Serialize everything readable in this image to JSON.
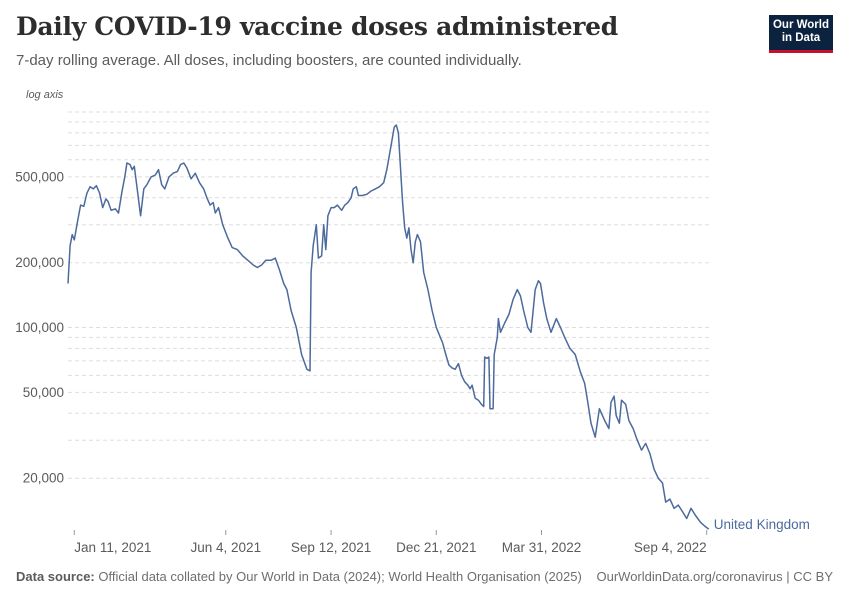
{
  "header": {
    "title": "Daily COVID-19 vaccine doses administered",
    "subtitle": "7-day rolling average. All doses, including boosters, are counted individually.",
    "logo_line1": "Our World",
    "logo_line2": "in Data"
  },
  "footer": {
    "source_label": "Data source:",
    "source_text": " Official data collated by Our World in Data (2024); World Health Organisation (2025)",
    "link_text": "OurWorldinData.org/coronavirus | CC BY"
  },
  "colors": {
    "series": "#4c6a9c",
    "grid": "#dddddd",
    "text": "#5b5b5b"
  },
  "chart_data": {
    "type": "line",
    "title": "Daily COVID-19 vaccine doses administered",
    "subtitle": "7-day rolling average. All doses, including boosters, are counted individually.",
    "y_scale": "log",
    "y_axis_note": "log axis",
    "ylim": [
      11500,
      1000000
    ],
    "xlim": [
      "2021-01-05",
      "2022-09-09"
    ],
    "y_ticks": [
      {
        "value": 20000,
        "label": "20,000"
      },
      {
        "value": 50000,
        "label": "50,000"
      },
      {
        "value": 100000,
        "label": "100,000"
      },
      {
        "value": 200000,
        "label": "200,000"
      },
      {
        "value": 500000,
        "label": "500,000"
      }
    ],
    "x_ticks": [
      {
        "date": "2021-01-11",
        "label": "Jan 11, 2021"
      },
      {
        "date": "2021-06-04",
        "label": "Jun 4, 2021"
      },
      {
        "date": "2021-09-12",
        "label": "Sep 12, 2021"
      },
      {
        "date": "2021-12-21",
        "label": "Dec 21, 2021"
      },
      {
        "date": "2022-03-31",
        "label": "Mar 31, 2022"
      },
      {
        "date": "2022-09-04",
        "label": "Sep 4, 2022"
      }
    ],
    "series": [
      {
        "name": "United Kingdom",
        "points": [
          [
            "2021-01-05",
            160000
          ],
          [
            "2021-01-07",
            240000
          ],
          [
            "2021-01-09",
            270000
          ],
          [
            "2021-01-11",
            255000
          ],
          [
            "2021-01-14",
            310000
          ],
          [
            "2021-01-17",
            370000
          ],
          [
            "2021-01-20",
            365000
          ],
          [
            "2021-01-23",
            420000
          ],
          [
            "2021-01-26",
            450000
          ],
          [
            "2021-01-29",
            440000
          ],
          [
            "2021-02-01",
            455000
          ],
          [
            "2021-02-04",
            420000
          ],
          [
            "2021-02-07",
            360000
          ],
          [
            "2021-02-10",
            395000
          ],
          [
            "2021-02-12",
            385000
          ],
          [
            "2021-02-15",
            350000
          ],
          [
            "2021-02-19",
            355000
          ],
          [
            "2021-02-22",
            340000
          ],
          [
            "2021-02-25",
            420000
          ],
          [
            "2021-02-28",
            500000
          ],
          [
            "2021-03-02",
            580000
          ],
          [
            "2021-03-05",
            570000
          ],
          [
            "2021-03-07",
            540000
          ],
          [
            "2021-03-09",
            560000
          ],
          [
            "2021-03-11",
            470000
          ],
          [
            "2021-03-15",
            330000
          ],
          [
            "2021-03-18",
            440000
          ],
          [
            "2021-03-21",
            460000
          ],
          [
            "2021-03-25",
            500000
          ],
          [
            "2021-03-29",
            510000
          ],
          [
            "2021-04-01",
            540000
          ],
          [
            "2021-04-04",
            460000
          ],
          [
            "2021-04-07",
            440000
          ],
          [
            "2021-04-11",
            500000
          ],
          [
            "2021-04-15",
            520000
          ],
          [
            "2021-04-19",
            530000
          ],
          [
            "2021-04-22",
            570000
          ],
          [
            "2021-04-25",
            580000
          ],
          [
            "2021-04-28",
            550000
          ],
          [
            "2021-05-02",
            490000
          ],
          [
            "2021-05-06",
            520000
          ],
          [
            "2021-05-10",
            470000
          ],
          [
            "2021-05-14",
            440000
          ],
          [
            "2021-05-17",
            400000
          ],
          [
            "2021-05-20",
            370000
          ],
          [
            "2021-05-23",
            380000
          ],
          [
            "2021-05-25",
            340000
          ],
          [
            "2021-05-28",
            360000
          ],
          [
            "2021-06-01",
            300000
          ],
          [
            "2021-06-06",
            260000
          ],
          [
            "2021-06-10",
            235000
          ],
          [
            "2021-06-15",
            230000
          ],
          [
            "2021-06-20",
            215000
          ],
          [
            "2021-06-25",
            205000
          ],
          [
            "2021-06-30",
            195000
          ],
          [
            "2021-07-04",
            190000
          ],
          [
            "2021-07-08",
            195000
          ],
          [
            "2021-07-12",
            205000
          ],
          [
            "2021-07-17",
            205000
          ],
          [
            "2021-07-21",
            210000
          ],
          [
            "2021-07-25",
            185000
          ],
          [
            "2021-07-29",
            160000
          ],
          [
            "2021-08-01",
            150000
          ],
          [
            "2021-08-05",
            120000
          ],
          [
            "2021-08-10",
            100000
          ],
          [
            "2021-08-15",
            75000
          ],
          [
            "2021-08-20",
            64000
          ],
          [
            "2021-08-23",
            63000
          ],
          [
            "2021-08-24",
            180000
          ],
          [
            "2021-08-26",
            240000
          ],
          [
            "2021-08-29",
            300000
          ],
          [
            "2021-08-31",
            210000
          ],
          [
            "2021-09-03",
            215000
          ],
          [
            "2021-09-05",
            300000
          ],
          [
            "2021-09-07",
            230000
          ],
          [
            "2021-09-09",
            330000
          ],
          [
            "2021-09-12",
            360000
          ],
          [
            "2021-09-15",
            360000
          ],
          [
            "2021-09-18",
            370000
          ],
          [
            "2021-09-22",
            350000
          ],
          [
            "2021-09-25",
            370000
          ],
          [
            "2021-09-28",
            380000
          ],
          [
            "2021-10-01",
            400000
          ],
          [
            "2021-10-03",
            440000
          ],
          [
            "2021-10-06",
            450000
          ],
          [
            "2021-10-08",
            410000
          ],
          [
            "2021-10-12",
            410000
          ],
          [
            "2021-10-16",
            415000
          ],
          [
            "2021-10-20",
            430000
          ],
          [
            "2021-10-24",
            440000
          ],
          [
            "2021-10-28",
            450000
          ],
          [
            "2021-11-01",
            470000
          ],
          [
            "2021-11-04",
            540000
          ],
          [
            "2021-11-08",
            700000
          ],
          [
            "2021-11-11",
            850000
          ],
          [
            "2021-11-13",
            870000
          ],
          [
            "2021-11-15",
            800000
          ],
          [
            "2021-11-17",
            550000
          ],
          [
            "2021-11-19",
            380000
          ],
          [
            "2021-11-21",
            290000
          ],
          [
            "2021-11-23",
            260000
          ],
          [
            "2021-11-25",
            290000
          ],
          [
            "2021-11-27",
            230000
          ],
          [
            "2021-11-29",
            200000
          ],
          [
            "2021-12-01",
            250000
          ],
          [
            "2021-12-03",
            270000
          ],
          [
            "2021-12-06",
            250000
          ],
          [
            "2021-12-09",
            180000
          ],
          [
            "2021-12-13",
            150000
          ],
          [
            "2021-12-17",
            120000
          ],
          [
            "2021-12-21",
            100000
          ],
          [
            "2021-12-24",
            92000
          ],
          [
            "2021-12-27",
            85000
          ],
          [
            "2021-12-30",
            75000
          ],
          [
            "2022-01-02",
            67000
          ],
          [
            "2022-01-05",
            65000
          ],
          [
            "2022-01-08",
            64000
          ],
          [
            "2022-01-11",
            68000
          ],
          [
            "2022-01-14",
            60000
          ],
          [
            "2022-01-17",
            56000
          ],
          [
            "2022-01-20",
            54000
          ],
          [
            "2022-01-22",
            52000
          ],
          [
            "2022-01-24",
            54000
          ],
          [
            "2022-01-27",
            47000
          ],
          [
            "2022-01-30",
            46000
          ],
          [
            "2022-02-02",
            44000
          ],
          [
            "2022-02-04",
            43000
          ],
          [
            "2022-02-05",
            73000
          ],
          [
            "2022-02-07",
            72000
          ],
          [
            "2022-02-09",
            73000
          ],
          [
            "2022-02-10",
            42000
          ],
          [
            "2022-02-13",
            42000
          ],
          [
            "2022-02-14",
            75000
          ],
          [
            "2022-02-17",
            90000
          ],
          [
            "2022-02-18",
            110000
          ],
          [
            "2022-02-20",
            95000
          ],
          [
            "2022-02-24",
            105000
          ],
          [
            "2022-02-28",
            115000
          ],
          [
            "2022-03-04",
            135000
          ],
          [
            "2022-03-08",
            150000
          ],
          [
            "2022-03-11",
            140000
          ],
          [
            "2022-03-14",
            120000
          ],
          [
            "2022-03-18",
            100000
          ],
          [
            "2022-03-21",
            95000
          ],
          [
            "2022-03-25",
            150000
          ],
          [
            "2022-03-28",
            165000
          ],
          [
            "2022-03-30",
            160000
          ],
          [
            "2022-04-02",
            130000
          ],
          [
            "2022-04-05",
            110000
          ],
          [
            "2022-04-09",
            95000
          ],
          [
            "2022-04-14",
            110000
          ],
          [
            "2022-04-18",
            100000
          ],
          [
            "2022-04-22",
            90000
          ],
          [
            "2022-04-27",
            80000
          ],
          [
            "2022-05-02",
            75000
          ],
          [
            "2022-05-07",
            62000
          ],
          [
            "2022-05-11",
            55000
          ],
          [
            "2022-05-14",
            45000
          ],
          [
            "2022-05-17",
            36000
          ],
          [
            "2022-05-21",
            31000
          ],
          [
            "2022-05-25",
            42000
          ],
          [
            "2022-05-30",
            37000
          ],
          [
            "2022-06-03",
            34000
          ],
          [
            "2022-06-05",
            45000
          ],
          [
            "2022-06-08",
            48000
          ],
          [
            "2022-06-10",
            39000
          ],
          [
            "2022-06-13",
            36000
          ],
          [
            "2022-06-15",
            46000
          ],
          [
            "2022-06-19",
            44000
          ],
          [
            "2022-06-22",
            37000
          ],
          [
            "2022-06-26",
            34000
          ],
          [
            "2022-06-30",
            30000
          ],
          [
            "2022-07-04",
            27000
          ],
          [
            "2022-07-08",
            29000
          ],
          [
            "2022-07-12",
            26000
          ],
          [
            "2022-07-16",
            22000
          ],
          [
            "2022-07-20",
            20000
          ],
          [
            "2022-07-24",
            19000
          ],
          [
            "2022-07-27",
            15500
          ],
          [
            "2022-07-31",
            16000
          ],
          [
            "2022-08-04",
            14500
          ],
          [
            "2022-08-08",
            15000
          ],
          [
            "2022-08-12",
            14000
          ],
          [
            "2022-08-16",
            13000
          ],
          [
            "2022-08-20",
            14500
          ],
          [
            "2022-08-24",
            13500
          ],
          [
            "2022-08-29",
            12500
          ],
          [
            "2022-09-02",
            12000
          ],
          [
            "2022-09-06",
            11600
          ]
        ]
      }
    ]
  }
}
